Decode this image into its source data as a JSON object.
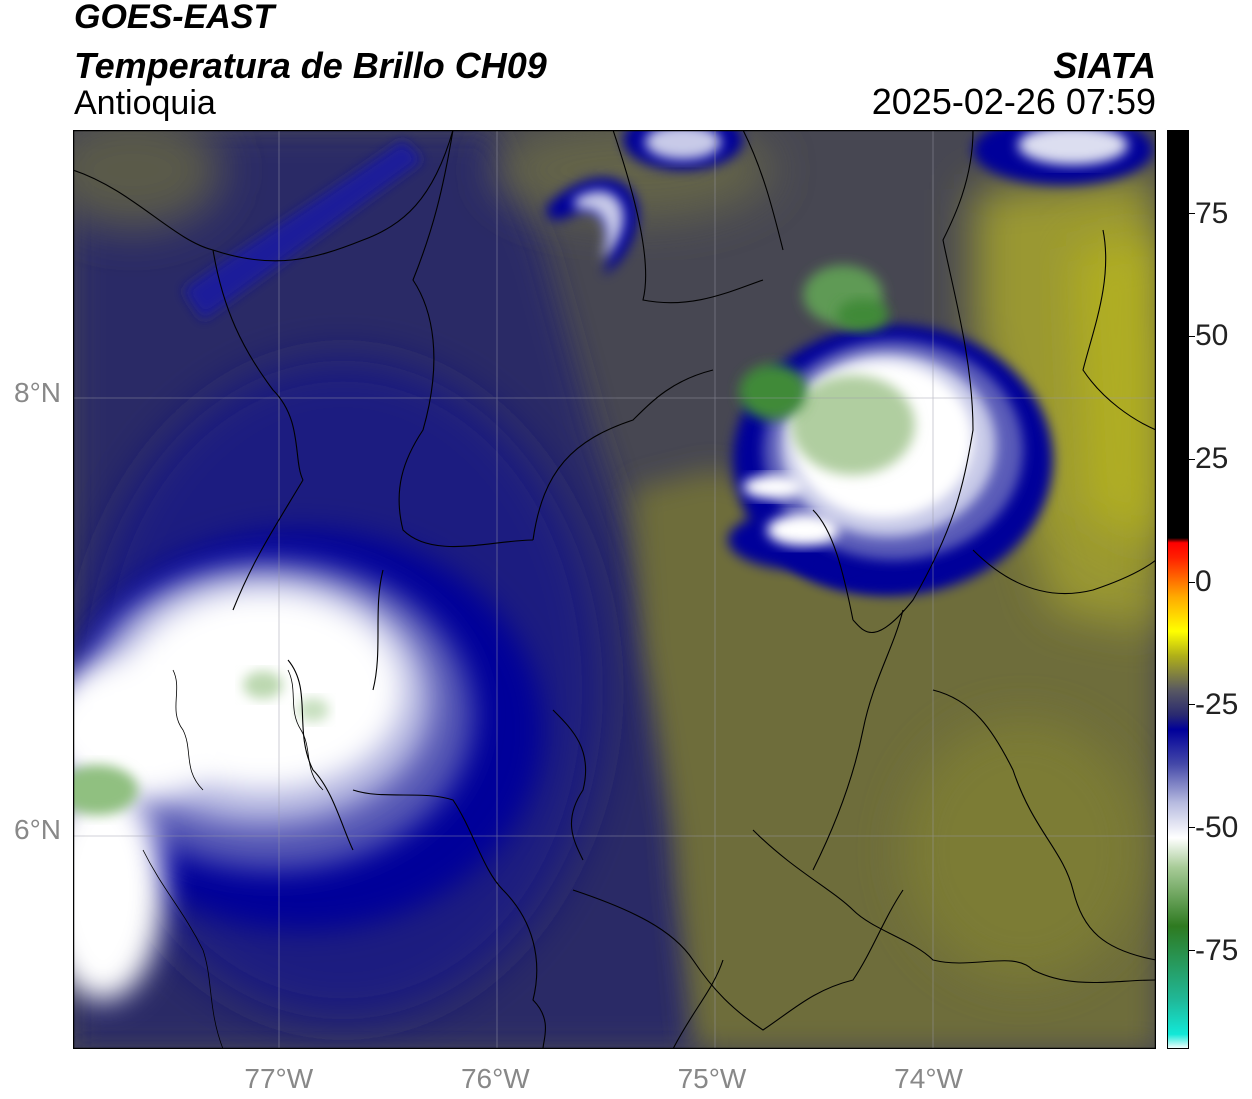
{
  "header": {
    "satellite": "GOES-EAST",
    "product": "Temperatura de Brillo CH09",
    "region": "Antioquia",
    "agency": "SIATA",
    "timestamp": "2025-02-26 07:59"
  },
  "map": {
    "lon_range": [
      -77.95,
      -72.95
    ],
    "lat_range": [
      5.0,
      9.2
    ],
    "lon_ticks": [
      {
        "value": -77,
        "label": "77°W"
      },
      {
        "value": -76,
        "label": "76°W"
      },
      {
        "value": -75,
        "label": "75°W"
      },
      {
        "value": -74,
        "label": "74°W"
      }
    ],
    "lat_ticks": [
      {
        "value": 8,
        "label": "8°N"
      },
      {
        "value": 6,
        "label": "6°N"
      }
    ]
  },
  "colorbar": {
    "range": [
      -95,
      92
    ],
    "ticks": [
      "75",
      "50",
      "25",
      "0",
      "-25",
      "-50",
      "-75"
    ],
    "tick_values": [
      75,
      50,
      25,
      0,
      -25,
      -50,
      -75
    ],
    "stops": [
      {
        "v": -95,
        "c": "#ffffff"
      },
      {
        "v": -92,
        "c": "#12e8d8"
      },
      {
        "v": -85,
        "c": "#20b898"
      },
      {
        "v": -70,
        "c": "#2e7a20"
      },
      {
        "v": -58,
        "c": "#a8cc98"
      },
      {
        "v": -52,
        "c": "#ffffff"
      },
      {
        "v": -45,
        "c": "#b8bce0"
      },
      {
        "v": -37,
        "c": "#4448a8"
      },
      {
        "v": -30,
        "c": "#00009a"
      },
      {
        "v": -27,
        "c": "#2a2a70"
      },
      {
        "v": -22,
        "c": "#585862"
      },
      {
        "v": -15,
        "c": "#b0b018"
      },
      {
        "v": -10,
        "c": "#ffff00"
      },
      {
        "v": -3,
        "c": "#ffaa00"
      },
      {
        "v": 5,
        "c": "#ff2000"
      },
      {
        "v": 8,
        "c": "#ff0000"
      },
      {
        "v": 9,
        "c": "#000000"
      },
      {
        "v": 92,
        "c": "#000000"
      }
    ]
  },
  "colors": {
    "background_olive": "#6f6f3a",
    "bright_olive": "#a8a628",
    "deep_cloud": "#00009a",
    "cold_top": "#ffffff",
    "very_cold": "#3d8a35"
  }
}
